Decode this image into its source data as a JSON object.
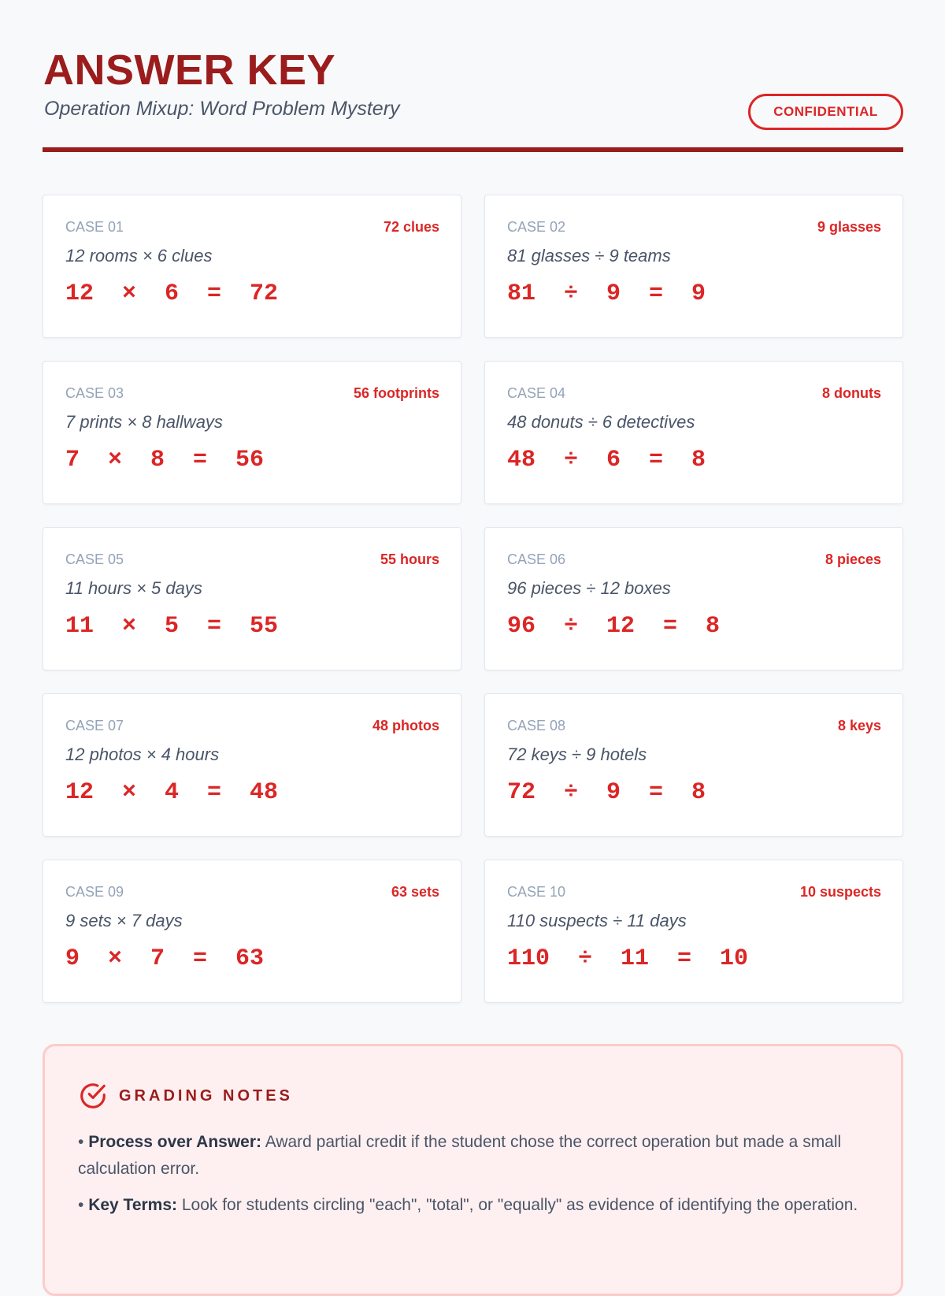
{
  "header": {
    "title": "ANSWER KEY",
    "subtitle": "Operation Mixup: Word Problem Mystery",
    "badge": "CONFIDENTIAL"
  },
  "cases": [
    {
      "label": "CASE 01",
      "answer": "72 clues",
      "description": "12 rooms × 6 clues",
      "equation": "12 × 6 = 72"
    },
    {
      "label": "CASE 02",
      "answer": "9 glasses",
      "description": "81 glasses ÷ 9 teams",
      "equation": "81 ÷ 9 = 9"
    },
    {
      "label": "CASE 03",
      "answer": "56 footprints",
      "description": "7 prints × 8 hallways",
      "equation": "7 × 8 = 56"
    },
    {
      "label": "CASE 04",
      "answer": "8 donuts",
      "description": "48 donuts ÷ 6 detectives",
      "equation": "48 ÷ 6 = 8"
    },
    {
      "label": "CASE 05",
      "answer": "55 hours",
      "description": "11 hours × 5 days",
      "equation": "11 × 5 = 55"
    },
    {
      "label": "CASE 06",
      "answer": "8 pieces",
      "description": "96 pieces ÷ 12 boxes",
      "equation": "96 ÷ 12 = 8"
    },
    {
      "label": "CASE 07",
      "answer": "48 photos",
      "description": "12 photos × 4 hours",
      "equation": "12 × 4 = 48"
    },
    {
      "label": "CASE 08",
      "answer": "8 keys",
      "description": "72 keys ÷ 9 hotels",
      "equation": "72 ÷ 9 = 8"
    },
    {
      "label": "CASE 09",
      "answer": "63 sets",
      "description": "9 sets × 7 days",
      "equation": "9 × 7 = 63"
    },
    {
      "label": "CASE 10",
      "answer": "10 suspects",
      "description": "110 suspects ÷ 11 days",
      "equation": "110 ÷ 11 = 10"
    }
  ],
  "notes": {
    "heading": "GRADING NOTES",
    "icon": "check-circle-icon",
    "items": [
      {
        "term": "Process over Answer:",
        "text": " Award partial credit if the student chose the correct operation but made a small calculation error."
      },
      {
        "term": "Key Terms:",
        "text": " Look for students circling \"each\", \"total\", or \"equally\" as evidence of identifying the operation."
      }
    ]
  },
  "colors": {
    "accent": "#dc2626",
    "dark_red": "#9b1c1c"
  }
}
